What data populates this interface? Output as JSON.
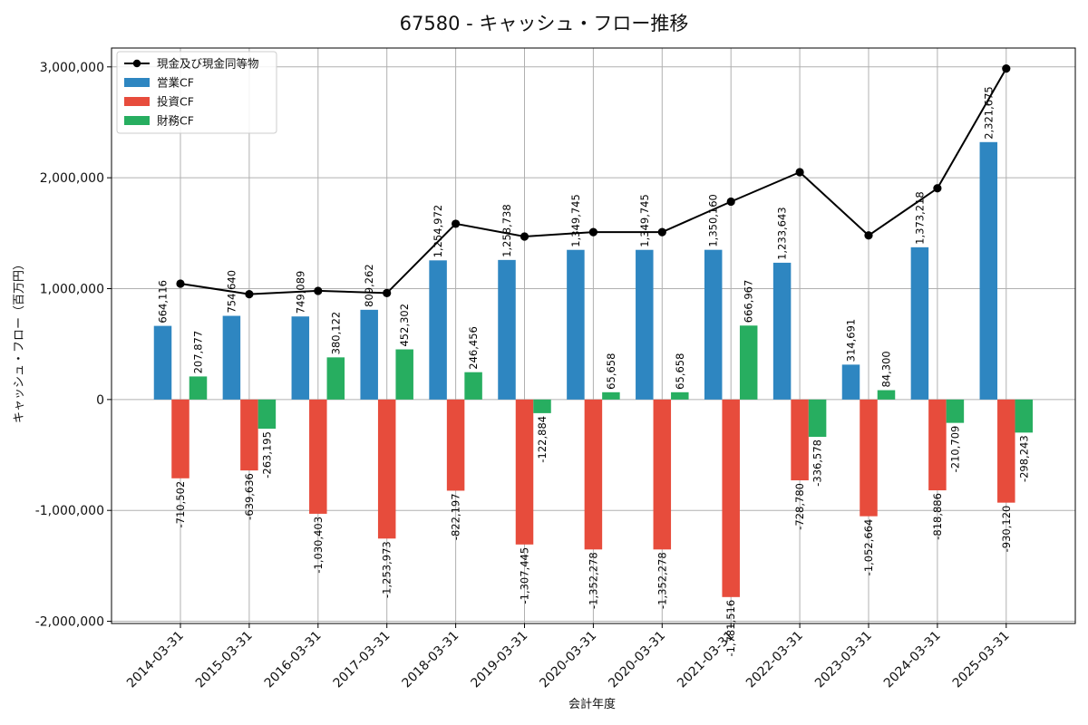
{
  "chart_data": {
    "type": "bar",
    "title": "67580 - キャッシュ・フロー推移",
    "xlabel": "会計年度",
    "ylabel": "キャッシュ・フロー（百万円）",
    "ylim": [
      -2020000,
      3170000
    ],
    "yticks": [
      -2000000,
      -1000000,
      0,
      1000000,
      2000000,
      3000000
    ],
    "ytick_labels": [
      "-2,000,000",
      "-1,000,000",
      "0",
      "1,000,000",
      "2,000,000",
      "3,000,000"
    ],
    "grid": true,
    "legend_position": "top-left",
    "categories": [
      "2014-03-31",
      "2015-03-31",
      "2016-03-31",
      "2017-03-31",
      "2018-03-31",
      "2019-03-31",
      "2020-03-31",
      "2020-03-31",
      "2021-03-31",
      "2022-03-31",
      "2023-03-31",
      "2024-03-31",
      "2025-03-31"
    ],
    "series": [
      {
        "name": "現金及び現金同等物",
        "kind": "line",
        "color": "#000000",
        "values": [
          1045000,
          950000,
          980000,
          960000,
          1585000,
          1470000,
          1510000,
          1510000,
          1785000,
          2050000,
          1480000,
          1905000,
          2985000
        ]
      },
      {
        "name": "営業CF",
        "kind": "bar",
        "color": "#2e86c1",
        "values": [
          664116,
          754640,
          749089,
          809262,
          1254972,
          1258738,
          1349745,
          1349745,
          1350160,
          1233643,
          314691,
          1373218,
          2321675
        ],
        "labels": [
          "664,116",
          "754,640",
          "749,089",
          "809,262",
          "1,254,972",
          "1,258,738",
          "1,349,745",
          "1,349,745",
          "1,350,160",
          "1,233,643",
          "314,691",
          "1,373,218",
          "2,321,675"
        ]
      },
      {
        "name": "投資CF",
        "kind": "bar",
        "color": "#e74c3c",
        "values": [
          -710502,
          -639636,
          -1030403,
          -1253973,
          -822197,
          -1307445,
          -1352278,
          -1352278,
          -1781516,
          -728780,
          -1052664,
          -818886,
          -930120
        ],
        "labels": [
          "-710,502",
          "-639,636",
          "-1,030,403",
          "-1,253,973",
          "-822,197",
          "-1,307,445",
          "-1,352,278",
          "-1,352,278",
          "-1,781,516",
          "-728,780",
          "-1,052,664",
          "-818,886",
          "-930,120"
        ]
      },
      {
        "name": "財務CF",
        "kind": "bar",
        "color": "#27ae60",
        "values": [
          207877,
          -263195,
          380122,
          452302,
          246456,
          -122884,
          65658,
          65658,
          666967,
          -336578,
          84300,
          -210709,
          -298243
        ],
        "labels": [
          "207,877",
          "-263,195",
          "380,122",
          "452,302",
          "246,456",
          "-122,884",
          "65,658",
          "65,658",
          "666,967",
          "-336,578",
          "84,300",
          "-210,709",
          "-298,243"
        ]
      }
    ]
  }
}
